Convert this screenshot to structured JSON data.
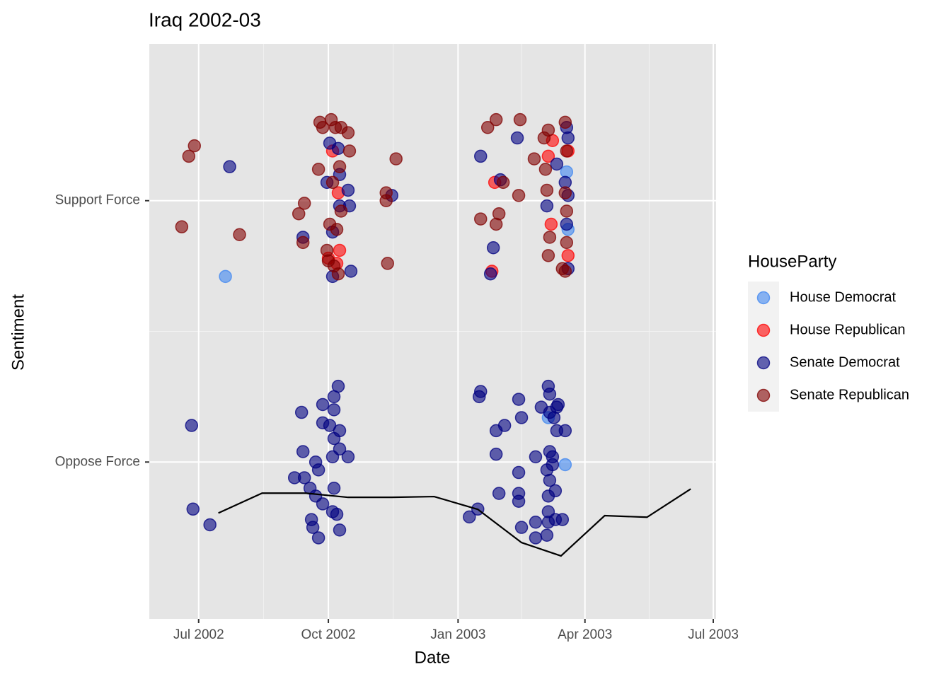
{
  "chart_data": {
    "type": "scatter",
    "title": "Iraq 2002-03",
    "x_label": "Date",
    "y_label": "Sentiment",
    "legend_title": "HouseParty",
    "legend_position": "right",
    "grid": true,
    "xlim": [
      "2002-05-27",
      "2003-07-03"
    ],
    "xticks": [
      {
        "value": "2002-07-01",
        "label": "Jul 2002"
      },
      {
        "value": "2002-10-01",
        "label": "Oct 2002"
      },
      {
        "value": "2003-01-01",
        "label": "Jan 2003"
      },
      {
        "value": "2003-04-01",
        "label": "Apr 2003"
      },
      {
        "value": "2003-07-01",
        "label": "Jul 2003"
      }
    ],
    "ylim": [
      0.4,
      2.6
    ],
    "yticks": [
      {
        "value": 1,
        "label": "Oppose Force"
      },
      {
        "value": 2,
        "label": "Support Force"
      }
    ],
    "series": [
      {
        "name": "House Democrat",
        "color": "#3d85f0",
        "x": [
          "2002-07-20",
          "2003-03-18",
          "2003-03-06",
          "2003-03-20",
          "2003-03-19"
        ],
        "values": [
          1.71,
          0.99,
          1.17,
          1.89,
          2.11
        ]
      },
      {
        "name": "House Republican",
        "color": "#ff0000",
        "x": [
          "2002-10-04",
          "2002-10-08",
          "2002-10-09",
          "2002-10-07",
          "2002-10-01",
          "2003-01-27",
          "2003-01-25",
          "2003-03-06",
          "2003-03-09",
          "2003-03-20",
          "2003-03-08",
          "2003-03-20"
        ],
        "values": [
          2.19,
          2.03,
          1.81,
          1.76,
          1.78,
          2.07,
          1.73,
          2.17,
          2.23,
          2.19,
          1.91,
          1.79
        ]
      },
      {
        "name": "Senate Democrat",
        "color": "#000080",
        "x": [
          "2002-07-23",
          "2002-09-13",
          "2002-09-30",
          "2002-10-02",
          "2002-10-08",
          "2002-10-09",
          "2002-10-15",
          "2002-10-16",
          "2002-10-09",
          "2002-10-04",
          "2002-10-04",
          "2002-10-17",
          "2002-11-15",
          "2003-01-17",
          "2003-02-12",
          "2003-01-31",
          "2003-01-26",
          "2003-01-24",
          "2003-03-05",
          "2003-03-19",
          "2003-03-20",
          "2003-03-12",
          "2003-03-18",
          "2003-03-20",
          "2003-03-19",
          "2003-03-20",
          "2002-06-26",
          "2002-06-27",
          "2002-07-09",
          "2002-09-12",
          "2002-09-13",
          "2002-09-07",
          "2002-09-14",
          "2002-09-18",
          "2002-09-22",
          "2002-09-24",
          "2002-09-27",
          "2002-09-27",
          "2002-09-22",
          "2002-09-27",
          "2002-09-19",
          "2002-09-20",
          "2002-09-24",
          "2002-10-05",
          "2002-10-08",
          "2002-10-05",
          "2002-10-02",
          "2002-10-05",
          "2002-10-09",
          "2002-10-09",
          "2002-10-04",
          "2002-10-15",
          "2002-10-05",
          "2002-10-04",
          "2002-10-07",
          "2002-10-09",
          "2003-01-16",
          "2003-01-17",
          "2003-01-28",
          "2003-02-03",
          "2003-01-28",
          "2003-02-13",
          "2003-02-15",
          "2003-02-13",
          "2003-01-30",
          "2003-02-13",
          "2003-02-13",
          "2003-01-15",
          "2003-01-09",
          "2003-02-15",
          "2003-02-25",
          "2003-03-01",
          "2003-03-06",
          "2003-03-07",
          "2003-03-12",
          "2003-03-13",
          "2003-03-07",
          "2003-03-10",
          "2003-03-12",
          "2003-03-18",
          "2003-02-25",
          "2003-03-07",
          "2003-03-09",
          "2003-03-05",
          "2003-03-09",
          "2003-03-07",
          "2003-03-11",
          "2003-03-06",
          "2003-03-06",
          "2003-02-25",
          "2003-03-06",
          "2003-03-16",
          "2003-03-11",
          "2003-03-05"
        ],
        "values": [
          2.13,
          1.86,
          2.07,
          2.22,
          2.2,
          2.1,
          2.04,
          1.98,
          1.98,
          1.88,
          1.71,
          1.73,
          2.02,
          2.17,
          2.24,
          2.08,
          1.82,
          1.72,
          1.98,
          2.28,
          2.24,
          2.14,
          2.07,
          2.02,
          1.91,
          1.74,
          1.14,
          0.82,
          0.76,
          1.19,
          1.04,
          0.94,
          0.94,
          0.9,
          1.0,
          0.97,
          1.22,
          1.15,
          0.87,
          0.84,
          0.78,
          0.75,
          0.71,
          1.25,
          1.29,
          1.2,
          1.14,
          1.09,
          1.12,
          1.05,
          1.02,
          1.02,
          0.9,
          0.81,
          0.8,
          0.74,
          1.25,
          1.27,
          1.12,
          1.14,
          1.03,
          1.24,
          1.17,
          0.96,
          0.88,
          0.88,
          0.85,
          0.82,
          0.79,
          0.75,
          0.71,
          1.21,
          1.29,
          1.26,
          1.21,
          1.22,
          1.19,
          1.17,
          1.12,
          1.12,
          1.02,
          1.04,
          1.02,
          0.97,
          0.99,
          0.93,
          0.89,
          0.87,
          0.81,
          0.77,
          0.77,
          0.78,
          0.78,
          0.72
        ]
      },
      {
        "name": "Senate Republican",
        "color": "#800000",
        "x": [
          "2002-06-19",
          "2002-06-24",
          "2002-06-28",
          "2002-07-30",
          "2002-09-25",
          "2002-09-27",
          "2002-09-24",
          "2002-09-10",
          "2002-09-14",
          "2002-09-13",
          "2002-09-30",
          "2002-10-03",
          "2002-10-06",
          "2002-10-10",
          "2002-10-15",
          "2002-10-16",
          "2002-10-09",
          "2002-10-04",
          "2002-10-02",
          "2002-10-07",
          "2002-10-10",
          "2002-10-08",
          "2002-10-05",
          "2002-10-01",
          "2002-11-11",
          "2002-11-11",
          "2002-11-12",
          "2002-11-18",
          "2003-01-22",
          "2003-01-28",
          "2003-02-14",
          "2003-01-17",
          "2003-01-28",
          "2003-01-30",
          "2003-02-02",
          "2003-02-13",
          "2003-02-24",
          "2003-03-03",
          "2003-03-06",
          "2003-03-04",
          "2003-03-05",
          "2003-03-06",
          "2003-03-07",
          "2003-03-18",
          "2003-03-19",
          "2003-03-18",
          "2003-03-19",
          "2003-03-19",
          "2003-03-18",
          "2003-03-16"
        ],
        "values": [
          1.9,
          2.17,
          2.21,
          1.87,
          2.3,
          2.28,
          2.12,
          1.95,
          1.99,
          1.84,
          1.81,
          2.31,
          2.28,
          2.28,
          2.26,
          2.19,
          2.13,
          2.07,
          1.91,
          1.89,
          1.96,
          1.72,
          1.75,
          1.77,
          2.03,
          2.0,
          1.76,
          2.16,
          2.28,
          2.31,
          2.31,
          1.93,
          1.91,
          1.95,
          2.07,
          2.02,
          2.16,
          2.24,
          2.27,
          2.12,
          2.04,
          1.79,
          1.86,
          2.3,
          2.19,
          2.03,
          1.96,
          1.84,
          1.73,
          1.74
        ]
      }
    ],
    "line": {
      "color": "#000000",
      "x": [
        "2002-07-15",
        "2002-08-15",
        "2002-09-15",
        "2002-10-15",
        "2002-11-15",
        "2002-12-15",
        "2003-01-15",
        "2003-02-15",
        "2003-03-15",
        "2003-04-15",
        "2003-05-15",
        "2003-06-15"
      ],
      "values": [
        0.805,
        0.881,
        0.881,
        0.865,
        0.865,
        0.868,
        0.819,
        0.692,
        0.641,
        0.795,
        0.789,
        0.897
      ]
    }
  }
}
